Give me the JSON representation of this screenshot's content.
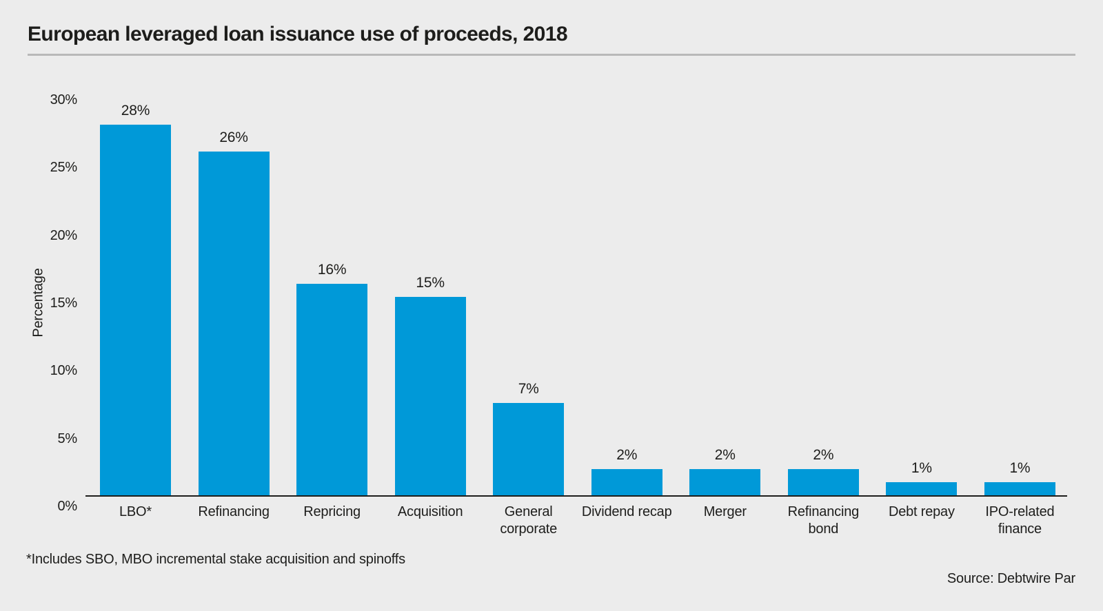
{
  "title": "European leveraged loan issuance use of proceeds, 2018",
  "footnote": "*Includes SBO, MBO incremental stake acquisition and spinoffs",
  "source": "Source: Debtwire Par",
  "colors": {
    "bar": "#0099d8",
    "background": "#ececec",
    "text": "#1d1d1b",
    "axis_line": "#1d1d1b",
    "title_rule": "#b9b9b9"
  },
  "chart_data": {
    "type": "bar",
    "title": "European leveraged loan issuance use of proceeds, 2018",
    "categories": [
      "LBO*",
      "Refinancing",
      "Repricing",
      "Acquisition",
      "General corporate",
      "Dividend recap",
      "Merger",
      "Refinancing bond",
      "Debt repay",
      "IPO-related finance"
    ],
    "xtick_labels": [
      "LBO*",
      "Refinancing",
      "Repricing",
      "Acquisition",
      "General\ncorporate",
      "Dividend recap",
      "Merger",
      "Refinancing\nbond",
      "Debt repay",
      "IPO-related\nfinance"
    ],
    "values": [
      28,
      26,
      16,
      15,
      7,
      2,
      2,
      2,
      1,
      1
    ],
    "value_labels": [
      "28%",
      "26%",
      "16%",
      "15%",
      "7%",
      "2%",
      "2%",
      "2%",
      "1%",
      "1%"
    ],
    "xlabel": "",
    "ylabel": "Percentage",
    "ylim": [
      0,
      30
    ],
    "yticks": [
      0,
      5,
      10,
      15,
      20,
      25,
      30
    ],
    "ytick_labels": [
      "0%",
      "5%",
      "10%",
      "15%",
      "20%",
      "25%",
      "30%"
    ],
    "grid": false,
    "legend": null,
    "bar_color": "#0099d8",
    "footnote": "*Includes SBO, MBO incremental stake acquisition and spinoffs",
    "source": "Source: Debtwire Par"
  }
}
